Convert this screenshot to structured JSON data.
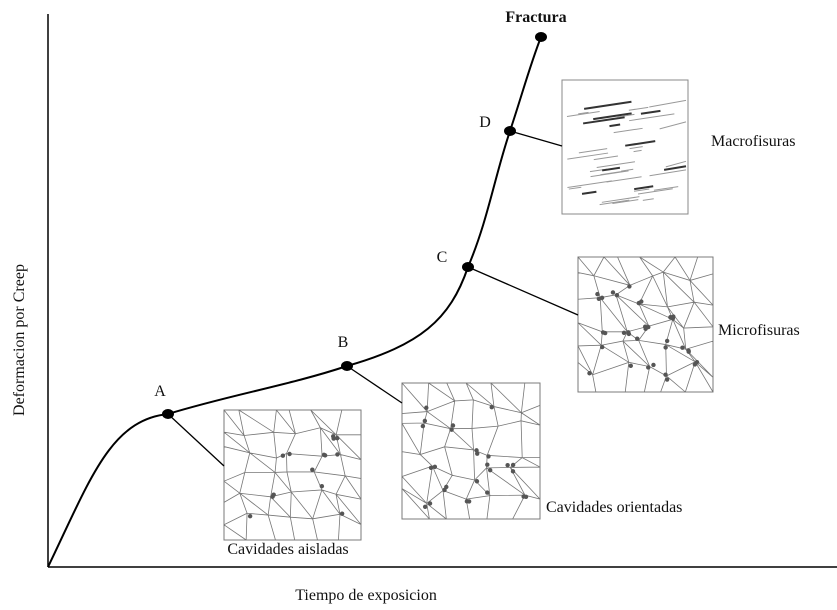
{
  "axes": {
    "y_label": "Deformacion por Creep",
    "x_label": "Tiempo de exposicion"
  },
  "fracture": "Fractura",
  "points": [
    {
      "label": "A"
    },
    {
      "label": "B"
    },
    {
      "label": "C"
    },
    {
      "label": "D"
    }
  ],
  "insets": [
    {
      "label": "Cavidades aisladas"
    },
    {
      "label": "Cavidades orientadas"
    },
    {
      "label": "Microfisuras"
    },
    {
      "label": "Macrofisuras"
    }
  ]
}
